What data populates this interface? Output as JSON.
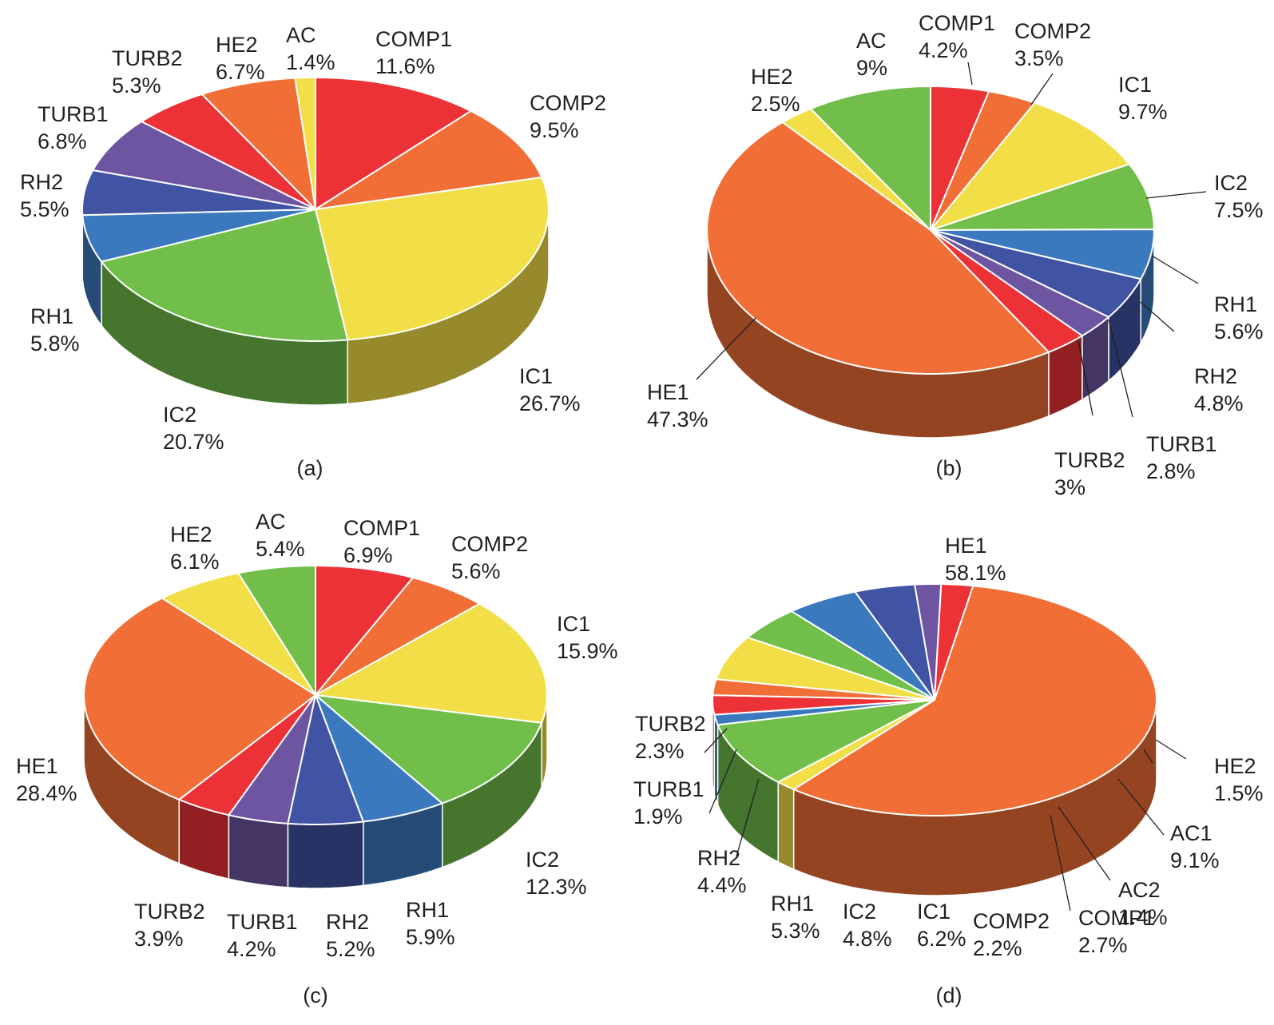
{
  "colors": {
    "red": "#ec3237",
    "orange": "#f16e36",
    "yellow": "#f2df48",
    "green": "#71bf4a",
    "blue": "#3b79bf",
    "navy": "#4153a3",
    "purple": "#6e55a1"
  },
  "chart_data": [
    {
      "type": "pie",
      "caption": "(a)",
      "slices": [
        {
          "label": "COMP1",
          "value": 11.6,
          "value_text": "11.6%",
          "color": "#ec3237"
        },
        {
          "label": "COMP2",
          "value": 9.5,
          "value_text": "9.5%",
          "color": "#f16e36"
        },
        {
          "label": "IC1",
          "value": 26.7,
          "value_text": "26.7%",
          "color": "#f2df48"
        },
        {
          "label": "IC2",
          "value": 20.7,
          "value_text": "20.7%",
          "color": "#71bf4a"
        },
        {
          "label": "RH1",
          "value": 5.8,
          "value_text": "5.8%",
          "color": "#3b79bf"
        },
        {
          "label": "RH2",
          "value": 5.5,
          "value_text": "5.5%",
          "color": "#4153a3"
        },
        {
          "label": "TURB1",
          "value": 6.8,
          "value_text": "6.8%",
          "color": "#6e55a1"
        },
        {
          "label": "TURB2",
          "value": 5.3,
          "value_text": "5.3%",
          "color": "#ec3237"
        },
        {
          "label": "HE2",
          "value": 6.7,
          "value_text": "6.7%",
          "color": "#f16e36"
        },
        {
          "label": "AC",
          "value": 1.4,
          "value_text": "1.4%",
          "color": "#f2df48"
        }
      ]
    },
    {
      "type": "pie",
      "caption": "(b)",
      "slices": [
        {
          "label": "COMP1",
          "value": 4.2,
          "value_text": "4.2%",
          "color": "#ec3237"
        },
        {
          "label": "COMP2",
          "value": 3.5,
          "value_text": "3.5%",
          "color": "#f16e36"
        },
        {
          "label": "IC1",
          "value": 9.7,
          "value_text": "9.7%",
          "color": "#f2df48"
        },
        {
          "label": "IC2",
          "value": 7.5,
          "value_text": "7.5%",
          "color": "#71bf4a"
        },
        {
          "label": "RH1",
          "value": 5.6,
          "value_text": "5.6%",
          "color": "#3b79bf"
        },
        {
          "label": "RH2",
          "value": 4.8,
          "value_text": "4.8%",
          "color": "#4153a3"
        },
        {
          "label": "TURB1",
          "value": 2.8,
          "value_text": "2.8%",
          "color": "#6e55a1"
        },
        {
          "label": "TURB2",
          "value": 3,
          "value_text": "3%",
          "color": "#ec3237"
        },
        {
          "label": "HE1",
          "value": 47.3,
          "value_text": "47.3%",
          "color": "#f16e36"
        },
        {
          "label": "HE2",
          "value": 2.5,
          "value_text": "2.5%",
          "color": "#f2df48"
        },
        {
          "label": "AC",
          "value": 9,
          "value_text": "9%",
          "color": "#71bf4a"
        }
      ]
    },
    {
      "type": "pie",
      "caption": "(c)",
      "slices": [
        {
          "label": "COMP1",
          "value": 6.9,
          "value_text": "6.9%",
          "color": "#ec3237"
        },
        {
          "label": "COMP2",
          "value": 5.6,
          "value_text": "5.6%",
          "color": "#f16e36"
        },
        {
          "label": "IC1",
          "value": 15.9,
          "value_text": "15.9%",
          "color": "#f2df48"
        },
        {
          "label": "IC2",
          "value": 12.3,
          "value_text": "12.3%",
          "color": "#71bf4a"
        },
        {
          "label": "RH1",
          "value": 5.9,
          "value_text": "5.9%",
          "color": "#3b79bf"
        },
        {
          "label": "RH2",
          "value": 5.2,
          "value_text": "5.2%",
          "color": "#4153a3"
        },
        {
          "label": "TURB1",
          "value": 4.2,
          "value_text": "4.2%",
          "color": "#6e55a1"
        },
        {
          "label": "TURB2",
          "value": 3.9,
          "value_text": "3.9%",
          "color": "#ec3237"
        },
        {
          "label": "HE1",
          "value": 28.4,
          "value_text": "28.4%",
          "color": "#f16e36"
        },
        {
          "label": "HE2",
          "value": 6.1,
          "value_text": "6.1%",
          "color": "#f2df48"
        },
        {
          "label": "AC",
          "value": 5.4,
          "value_text": "5.4%",
          "color": "#71bf4a"
        }
      ]
    },
    {
      "type": "pie",
      "caption": "(d)",
      "slices": [
        {
          "label": "HE1",
          "value": 58.1,
          "value_text": "58.1%",
          "color": "#f16e36"
        },
        {
          "label": "HE2",
          "value": 1.5,
          "value_text": "1.5%",
          "color": "#f2df48"
        },
        {
          "label": "AC1",
          "value": 9.1,
          "value_text": "9.1%",
          "color": "#71bf4a"
        },
        {
          "label": "AC2",
          "value": 1.4,
          "value_text": "1.4%",
          "color": "#3b79bf"
        },
        {
          "label": "COMP1",
          "value": 2.7,
          "value_text": "2.7%",
          "color": "#ec3237"
        },
        {
          "label": "COMP2",
          "value": 2.2,
          "value_text": "2.2%",
          "color": "#f16e36"
        },
        {
          "label": "IC1",
          "value": 6.2,
          "value_text": "6.2%",
          "color": "#f2df48"
        },
        {
          "label": "IC2",
          "value": 4.8,
          "value_text": "4.8%",
          "color": "#71bf4a"
        },
        {
          "label": "RH1",
          "value": 5.3,
          "value_text": "5.3%",
          "color": "#3b79bf"
        },
        {
          "label": "RH2",
          "value": 4.4,
          "value_text": "4.4%",
          "color": "#4153a3"
        },
        {
          "label": "TURB1",
          "value": 1.9,
          "value_text": "1.9%",
          "color": "#6e55a1"
        },
        {
          "label": "TURB2",
          "value": 2.3,
          "value_text": "2.3%",
          "color": "#ec3237"
        }
      ]
    }
  ]
}
